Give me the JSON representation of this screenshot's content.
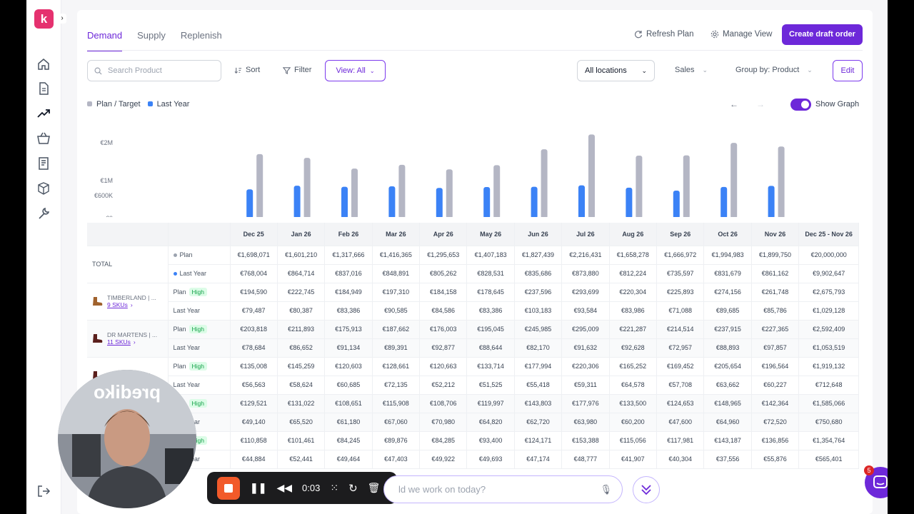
{
  "app": {
    "logo_letter": "k",
    "accent": "#6d28d9"
  },
  "tabs": [
    {
      "label": "Demand",
      "active": true
    },
    {
      "label": "Supply"
    },
    {
      "label": "Replenish"
    }
  ],
  "header": {
    "refresh": "Refresh Plan",
    "manage": "Manage View",
    "create": "Create draft order"
  },
  "toolbar": {
    "search_placeholder": "Search Product",
    "sort": "Sort",
    "filter": "Filter",
    "view": "View: All",
    "location": "All locations",
    "metric": "Sales",
    "group": "Group by: Product",
    "edit": "Edit"
  },
  "legend": {
    "plan": "Plan / Target",
    "last_year": "Last Year",
    "show_graph": "Show Graph",
    "show_graph_on": true
  },
  "chart_data": {
    "type": "bar",
    "categories": [
      "Dec 25",
      "Jan 26",
      "Feb 26",
      "Mar 26",
      "Apr 26",
      "May 26",
      "Jun 26",
      "Jul 26",
      "Aug 26",
      "Sep 26",
      "Oct 26",
      "Nov 26"
    ],
    "yticks": [
      "€2M",
      "€1M",
      "€600K",
      "€0"
    ],
    "ylim": [
      0,
      2300000
    ],
    "series": [
      {
        "name": "Last Year",
        "color": "#3b82f6",
        "values": [
          768004,
          864714,
          837016,
          848891,
          805262,
          828531,
          835686,
          873880,
          812224,
          735597,
          831679,
          861162
        ]
      },
      {
        "name": "Plan / Target",
        "color": "#b4b6c4",
        "values": [
          1698071,
          1601210,
          1317666,
          1416365,
          1295653,
          1407183,
          1827439,
          2216431,
          1658278,
          1666972,
          1994983,
          1899750
        ]
      }
    ]
  },
  "table": {
    "headers": [
      "Dec 25",
      "Jan 26",
      "Feb 26",
      "Mar 26",
      "Apr 26",
      "May 26",
      "Jun 26",
      "Jul 26",
      "Aug 26",
      "Sep 26",
      "Oct 26",
      "Nov 26",
      "Dec 25 - Nov 26"
    ],
    "total": {
      "label": "TOTAL",
      "plan_label": "Plan",
      "ly_label": "Last Year",
      "plan": [
        "€1,698,071",
        "€1,601,210",
        "€1,317,666",
        "€1,416,365",
        "€1,295,653",
        "€1,407,183",
        "€1,827,439",
        "€2,216,431",
        "€1,658,278",
        "€1,666,972",
        "€1,994,983",
        "€1,899,750",
        "€20,000,000"
      ],
      "ly": [
        "€768,004",
        "€864,714",
        "€837,016",
        "€848,891",
        "€805,262",
        "€828,531",
        "€835,686",
        "€873,880",
        "€812,224",
        "€735,597",
        "€831,679",
        "€861,162",
        "€9,902,647"
      ]
    },
    "products": [
      {
        "name": "TIMBERLAND | ...",
        "skus": "9 SKUs",
        "plan_label": "Plan",
        "tag": "High",
        "ly_label": "Last Year",
        "plan": [
          "€194,590",
          "€222,745",
          "€184,949",
          "€197,310",
          "€184,158",
          "€178,645",
          "€237,596",
          "€293,699",
          "€220,304",
          "€225,893",
          "€274,156",
          "€261,748",
          "€2,675,793"
        ],
        "ly": [
          "€79,487",
          "€80,387",
          "€83,386",
          "€90,585",
          "€84,586",
          "€83,386",
          "€103,183",
          "€93,584",
          "€83,986",
          "€71,088",
          "€89,685",
          "€85,786",
          "€1,029,128"
        ]
      },
      {
        "name": "DR MARTENS | ...",
        "skus": "11 SKUs",
        "plan_label": "Plan",
        "tag": "High",
        "ly_label": "Last Year",
        "plan": [
          "€203,818",
          "€211,893",
          "€175,913",
          "€187,662",
          "€176,003",
          "€195,045",
          "€245,985",
          "€295,009",
          "€221,287",
          "€214,514",
          "€237,915",
          "€227,365",
          "€2,592,409"
        ],
        "ly": [
          "€78,684",
          "€86,652",
          "€91,134",
          "€89,391",
          "€92,877",
          "€88,644",
          "€82,170",
          "€91,632",
          "€92,628",
          "€72,957",
          "€88,893",
          "€97,857",
          "€1,053,519"
        ]
      },
      {
        "name": "DR MARTENS | ...",
        "skus": "",
        "plan_label": "Plan",
        "tag": "High",
        "ly_label": "Last Year",
        "plan": [
          "€135,008",
          "€145,259",
          "€120,603",
          "€128,661",
          "€120,663",
          "€133,714",
          "€177,994",
          "€220,306",
          "€165,252",
          "€169,452",
          "€205,654",
          "€196,564",
          "€1,919,132"
        ],
        "ly": [
          "€56,563",
          "€58,624",
          "€60,685",
          "€72,135",
          "€52,212",
          "€51,525",
          "€55,418",
          "€59,311",
          "€64,578",
          "€57,708",
          "€63,662",
          "€60,227",
          "€712,648"
        ]
      },
      {
        "name": "",
        "skus": "",
        "plan_label": "Plan",
        "tag": "High",
        "ly_label": "Last Year",
        "plan": [
          "€129,521",
          "€131,022",
          "€108,651",
          "€115,908",
          "€108,706",
          "€119,997",
          "€143,803",
          "€177,976",
          "€133,500",
          "€124,653",
          "€148,965",
          "€142,364",
          "€1,585,066"
        ],
        "ly": [
          "€49,140",
          "€65,520",
          "€61,180",
          "€67,060",
          "€70,980",
          "€64,820",
          "€62,720",
          "€63,980",
          "€60,200",
          "€47,600",
          "€64,960",
          "€72,520",
          "€750,680"
        ]
      },
      {
        "name": "",
        "skus": "",
        "plan_label": "Plan",
        "tag": "High",
        "ly_label": "Last Year",
        "plan": [
          "€110,858",
          "€101,461",
          "€84,245",
          "€89,876",
          "€84,285",
          "€93,400",
          "€124,171",
          "€153,388",
          "€115,056",
          "€117,981",
          "€143,187",
          "€136,856",
          "€1,354,764"
        ],
        "ly": [
          "€44,884",
          "€52,441",
          "€49,464",
          "€47,403",
          "€49,922",
          "€49,693",
          "€47,174",
          "€48,777",
          "€41,907",
          "€40,304",
          "€37,556",
          "€55,876",
          "€565,401"
        ]
      }
    ]
  },
  "recorder": {
    "time": "0:03"
  },
  "assistant": {
    "placeholder": "ld we work on today?"
  },
  "chat": {
    "badge": "5"
  }
}
